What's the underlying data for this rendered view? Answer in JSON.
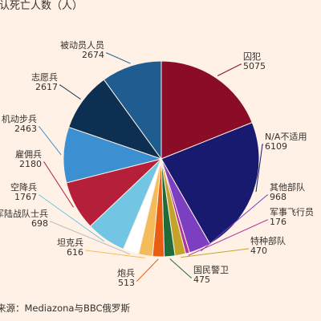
{
  "chart_data": {
    "type": "pie",
    "title": "确认死亡人数（人）",
    "source": "来源：Mediazona与BBC俄罗斯",
    "slices": [
      {
        "label": "囚犯",
        "value": 5075,
        "value_label": "5075",
        "color": "#8b0c26"
      },
      {
        "label": "N/A不适用",
        "value": 6109,
        "value_label": "6109",
        "color": "#171a6e"
      },
      {
        "label": "其他部队",
        "value": 968,
        "value_label": "968",
        "color": "#7d3fc2"
      },
      {
        "label": "军事飞行员",
        "value": 176,
        "value_label": "176",
        "color": "#b0369a"
      },
      {
        "label": "特种部队",
        "value": 470,
        "value_label": "470",
        "color": "#c4a32b"
      },
      {
        "label": "国民警卫",
        "value": 475,
        "value_label": "475",
        "color": "#1f6b3a"
      },
      {
        "label": "炮兵",
        "value": 513,
        "value_label": "513",
        "color": "#e85d12"
      },
      {
        "label": "坦克兵",
        "value": 616,
        "value_label": "616",
        "color": "#f3bb5a"
      },
      {
        "label": "海军陆战队士兵",
        "value": 698,
        "value_label": "698",
        "color": "#ffffff"
      },
      {
        "label": "空降兵",
        "value": 1767,
        "value_label": "1767",
        "color": "#72c6e4"
      },
      {
        "label": "雇佣兵",
        "value": 2180,
        "value_label": "2180",
        "color": "#b51f3a"
      },
      {
        "label": "机动步兵",
        "value": 2463,
        "value_label": "2463",
        "color": "#3c8fd0"
      },
      {
        "label": "志愿兵",
        "value": 2617,
        "value_label": "2617",
        "color": "#0c2f52"
      },
      {
        "label": "被动员人员",
        "value": 2674,
        "value_label": "2674",
        "color": "#1f5c8f"
      }
    ]
  }
}
